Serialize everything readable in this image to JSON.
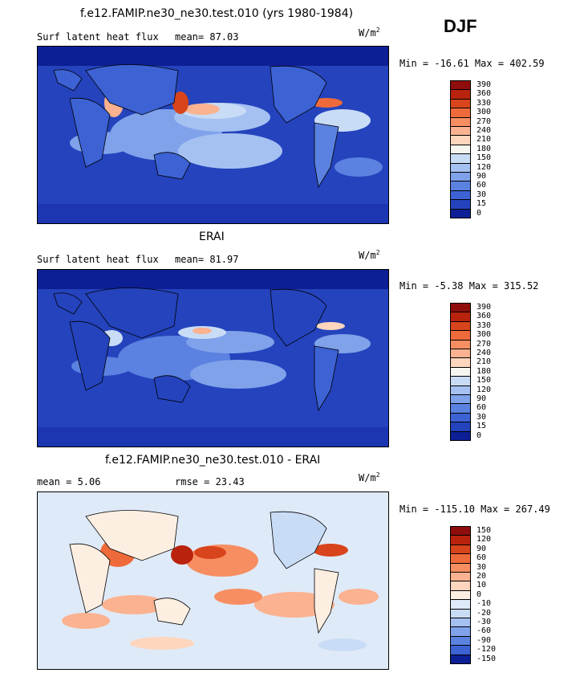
{
  "figure": {
    "season": "DJF",
    "units": "W/m",
    "units_sup": "2"
  },
  "panels": [
    {
      "title": "f.e12.FAMIP.ne30_ne30.test.010 (yrs 1980-1984)",
      "left_label": "Surf latent heat flux",
      "stat_text": "mean=  87.03",
      "minmax": "Min = -16.61 Max = 402.59",
      "levels": [
        "390",
        "360",
        "330",
        "300",
        "270",
        "240",
        "210",
        "180",
        "150",
        "120",
        "90",
        "60",
        "30",
        "15",
        "0"
      ],
      "colors": [
        "#8f0d0d",
        "#b9230e",
        "#d8441b",
        "#ef6a3a",
        "#f78e62",
        "#fbb290",
        "#fdd6bd",
        "#f6f5ef",
        "#c9dcf6",
        "#a5c1f2",
        "#7fa2ea",
        "#5b82e0",
        "#3c62d4",
        "#2443bd",
        "#0d1f94"
      ]
    },
    {
      "title": "ERAI",
      "left_label": "Surf latent heat flux",
      "stat_text": "mean=  81.97",
      "minmax": "Min =  -5.38 Max = 315.52",
      "levels": [
        "390",
        "360",
        "330",
        "300",
        "270",
        "240",
        "210",
        "180",
        "150",
        "120",
        "90",
        "60",
        "30",
        "15",
        "0"
      ],
      "colors": [
        "#8f0d0d",
        "#b9230e",
        "#d8441b",
        "#ef6a3a",
        "#f78e62",
        "#fbb290",
        "#fdd6bd",
        "#f6f5ef",
        "#c9dcf6",
        "#a5c1f2",
        "#7fa2ea",
        "#5b82e0",
        "#3c62d4",
        "#2443bd",
        "#0d1f94"
      ]
    },
    {
      "title": "f.e12.FAMIP.ne30_ne30.test.010 - ERAI",
      "left_label": "mean =   5.06",
      "stat_text": "rmse =  23.43",
      "minmax": "Min = -115.10 Max = 267.49",
      "levels": [
        "150",
        "120",
        "90",
        "60",
        "30",
        "20",
        "10",
        "0",
        "-10",
        "-20",
        "-30",
        "-60",
        "-90",
        "-120",
        "-150"
      ],
      "colors": [
        "#8f0d0d",
        "#b9230e",
        "#d8441b",
        "#ef6a3a",
        "#f78e62",
        "#fbb290",
        "#fdd6bd",
        "#fdeee2",
        "#dfeaf8",
        "#c9dcf6",
        "#a5c1f2",
        "#7fa2ea",
        "#5b82e0",
        "#3c62d4",
        "#0d1f94"
      ]
    }
  ],
  "chart_data": [
    {
      "type": "heatmap",
      "title": "f.e12.FAMIP.ne30_ne30.test.010 (yrs 1980-1984)",
      "variable": "Surf latent heat flux",
      "units": "W/m2",
      "mean": 87.03,
      "min": -16.61,
      "max": 402.59,
      "colorbar_levels": [
        0,
        15,
        30,
        60,
        90,
        120,
        150,
        180,
        210,
        240,
        270,
        300,
        330,
        360,
        390
      ],
      "domain": "global lat-lon map"
    },
    {
      "type": "heatmap",
      "title": "ERAI",
      "variable": "Surf latent heat flux",
      "units": "W/m2",
      "mean": 81.97,
      "min": -5.38,
      "max": 315.52,
      "colorbar_levels": [
        0,
        15,
        30,
        60,
        90,
        120,
        150,
        180,
        210,
        240,
        270,
        300,
        330,
        360,
        390
      ],
      "domain": "global lat-lon map"
    },
    {
      "type": "heatmap",
      "title": "f.e12.FAMIP.ne30_ne30.test.010 - ERAI",
      "units": "W/m2",
      "mean": 5.06,
      "rmse": 23.43,
      "min": -115.1,
      "max": 267.49,
      "colorbar_levels": [
        -150,
        -120,
        -90,
        -60,
        -30,
        -20,
        -10,
        0,
        10,
        20,
        30,
        60,
        90,
        120,
        150
      ],
      "domain": "global lat-lon map"
    }
  ]
}
